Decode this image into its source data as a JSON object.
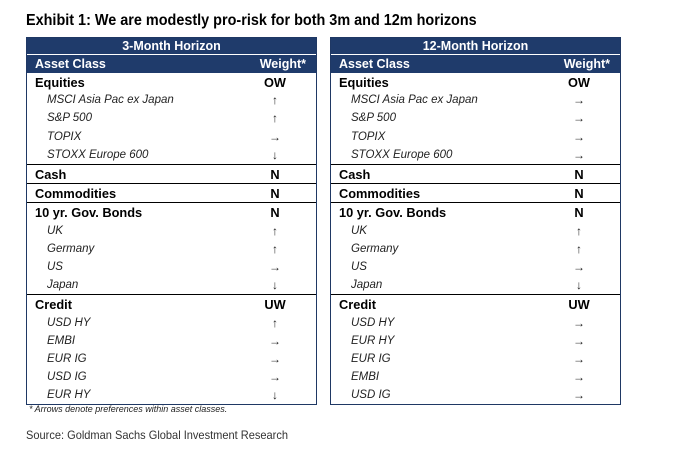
{
  "title": "Exhibit 1: We are modestly pro-risk for both 3m and 12m horizons",
  "tables": [
    {
      "horizon": "3-Month Horizon",
      "col_asset": "Asset Class",
      "col_weight": "Weight*",
      "rows": [
        {
          "type": "cat",
          "label": "Equities",
          "weight": "OW"
        },
        {
          "type": "sub",
          "label": "MSCI Asia Pac ex Japan",
          "weight": "↑"
        },
        {
          "type": "sub",
          "label": "S&P 500",
          "weight": "↑"
        },
        {
          "type": "sub",
          "label": "TOPIX",
          "weight": "→"
        },
        {
          "type": "sub",
          "label": "STOXX Europe 600",
          "weight": "↓"
        },
        {
          "type": "cat",
          "label": "Cash",
          "weight": "N"
        },
        {
          "type": "cat",
          "label": "Commodities",
          "weight": "N"
        },
        {
          "type": "cat",
          "label": "10 yr. Gov. Bonds",
          "weight": "N"
        },
        {
          "type": "sub",
          "label": "UK",
          "weight": "↑"
        },
        {
          "type": "sub",
          "label": "Germany",
          "weight": "↑"
        },
        {
          "type": "sub",
          "label": "US",
          "weight": "→"
        },
        {
          "type": "sub",
          "label": "Japan",
          "weight": "↓"
        },
        {
          "type": "cat",
          "label": "Credit",
          "weight": "UW"
        },
        {
          "type": "sub",
          "label": "USD HY",
          "weight": "↑"
        },
        {
          "type": "sub",
          "label": "EMBI",
          "weight": "→"
        },
        {
          "type": "sub",
          "label": "EUR IG",
          "weight": "→"
        },
        {
          "type": "sub",
          "label": "USD IG",
          "weight": "→"
        },
        {
          "type": "sub",
          "label": "EUR HY",
          "weight": "↓"
        }
      ]
    },
    {
      "horizon": "12-Month Horizon",
      "col_asset": "Asset Class",
      "col_weight": "Weight*",
      "rows": [
        {
          "type": "cat",
          "label": "Equities",
          "weight": "OW"
        },
        {
          "type": "sub",
          "label": "MSCI Asia Pac ex Japan",
          "weight": "→"
        },
        {
          "type": "sub",
          "label": "S&P 500",
          "weight": "→"
        },
        {
          "type": "sub",
          "label": "TOPIX",
          "weight": "→"
        },
        {
          "type": "sub",
          "label": "STOXX Europe 600",
          "weight": "→"
        },
        {
          "type": "cat",
          "label": "Cash",
          "weight": "N"
        },
        {
          "type": "cat",
          "label": "Commodities",
          "weight": "N"
        },
        {
          "type": "cat",
          "label": "10 yr. Gov. Bonds",
          "weight": "N"
        },
        {
          "type": "sub",
          "label": "UK",
          "weight": "↑"
        },
        {
          "type": "sub",
          "label": "Germany",
          "weight": "↑"
        },
        {
          "type": "sub",
          "label": "US",
          "weight": "→"
        },
        {
          "type": "sub",
          "label": "Japan",
          "weight": "↓"
        },
        {
          "type": "cat",
          "label": "Credit",
          "weight": "UW"
        },
        {
          "type": "sub",
          "label": "USD HY",
          "weight": "→"
        },
        {
          "type": "sub",
          "label": "EUR HY",
          "weight": "→"
        },
        {
          "type": "sub",
          "label": "EUR IG",
          "weight": "→"
        },
        {
          "type": "sub",
          "label": "EMBI",
          "weight": "→"
        },
        {
          "type": "sub",
          "label": "USD IG",
          "weight": "→"
        }
      ]
    }
  ],
  "footnote": "* Arrows denote preferences within asset classes.",
  "source": "Source: Goldman Sachs Global Investment Research",
  "colors": {
    "header_bg": "#1f3b6b",
    "header_text": "#ffffff"
  }
}
